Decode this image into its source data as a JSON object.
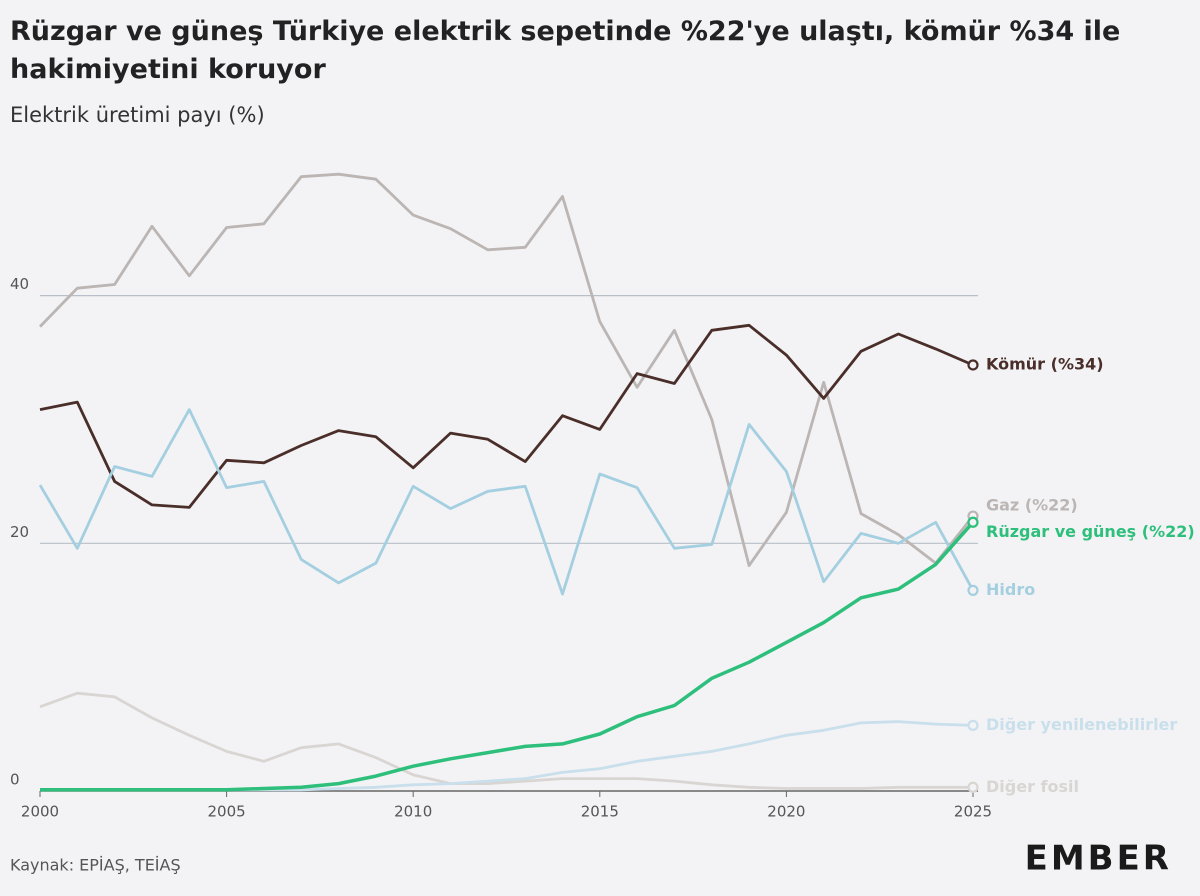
{
  "chart_data": {
    "type": "line",
    "title": "Rüzgar ve güneş Türkiye elektrik sepetinde %22'ye ulaştı, kömür %34 ile hakimiyetini koruyor",
    "subtitle": "Elektrik üretimi payı (%)",
    "source": "Kaynak: EPİAŞ, TEİAŞ",
    "logo": "EMBER",
    "x": [
      2000,
      2001,
      2002,
      2003,
      2004,
      2005,
      2006,
      2007,
      2008,
      2009,
      2010,
      2011,
      2012,
      2013,
      2014,
      2015,
      2016,
      2017,
      2018,
      2019,
      2020,
      2021,
      2022,
      2023,
      2024,
      2025
    ],
    "xlim": [
      2000,
      2025
    ],
    "xticks": [
      2000,
      2005,
      2010,
      2015,
      2020,
      2025
    ],
    "ylim": [
      0,
      52
    ],
    "yticks": [
      0,
      20,
      40
    ],
    "grid": true,
    "series": [
      {
        "name": "Gaz (%22)",
        "color": "#bbb5b3",
        "values": [
          37.5,
          40.6,
          40.9,
          45.6,
          41.6,
          45.5,
          45.8,
          49.6,
          49.8,
          49.4,
          46.5,
          45.4,
          43.7,
          43.9,
          48.0,
          37.9,
          32.6,
          37.2,
          30.0,
          18.2,
          22.5,
          33.0,
          22.4,
          20.7,
          18.4,
          22.2
        ]
      },
      {
        "name": "Kömür (%34)",
        "color": "#4a2e2a",
        "values": [
          30.8,
          31.4,
          25.0,
          23.1,
          22.9,
          26.7,
          26.5,
          27.9,
          29.1,
          28.6,
          26.1,
          28.9,
          28.4,
          26.6,
          30.3,
          29.2,
          33.7,
          32.9,
          37.2,
          37.6,
          35.2,
          31.7,
          35.5,
          36.9,
          35.7,
          34.4
        ]
      },
      {
        "name": "Hidro",
        "color": "#a4cfe0",
        "values": [
          24.7,
          19.6,
          26.2,
          25.4,
          30.8,
          24.5,
          25.0,
          18.7,
          16.8,
          18.4,
          24.6,
          22.8,
          24.2,
          24.6,
          15.9,
          25.6,
          24.5,
          19.6,
          19.9,
          29.6,
          25.8,
          16.9,
          20.8,
          20.0,
          21.7,
          16.2
        ]
      },
      {
        "name": "Diğer fosil",
        "color": "#d9d5d3",
        "values": [
          6.8,
          7.9,
          7.6,
          5.9,
          4.5,
          3.2,
          2.4,
          3.5,
          3.8,
          2.7,
          1.3,
          0.6,
          0.6,
          0.8,
          1.0,
          1.0,
          1.0,
          0.8,
          0.5,
          0.3,
          0.2,
          0.2,
          0.2,
          0.3,
          0.3,
          0.3
        ]
      },
      {
        "name": "Diğer yenilenebilirler",
        "color": "#c9dfeb",
        "values": [
          0.1,
          0.1,
          0.1,
          0.1,
          0.1,
          0.1,
          0.1,
          0.1,
          0.2,
          0.3,
          0.5,
          0.6,
          0.8,
          1.0,
          1.5,
          1.8,
          2.4,
          2.8,
          3.2,
          3.8,
          4.5,
          4.9,
          5.5,
          5.6,
          5.4,
          5.3
        ]
      },
      {
        "name": "Rüzgar ve güneş (%22)",
        "color": "#2dbf7b",
        "values": [
          0.1,
          0.1,
          0.1,
          0.1,
          0.1,
          0.1,
          0.2,
          0.3,
          0.6,
          1.2,
          2.0,
          2.6,
          3.1,
          3.6,
          3.8,
          4.6,
          6.0,
          6.9,
          9.1,
          10.4,
          12.0,
          13.6,
          15.6,
          16.3,
          18.3,
          21.7
        ]
      }
    ]
  }
}
